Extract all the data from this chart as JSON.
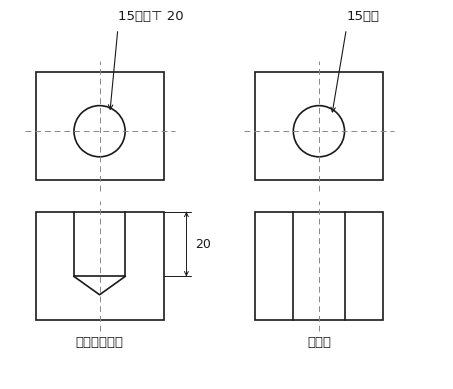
{
  "bg_color": "#ffffff",
  "line_color": "#1a1a1a",
  "dash_color": "#888888",
  "label_left": "貫通しない穴",
  "label_right": "貫通穴",
  "annot_left": "15キリ⊤ 20",
  "annot_right": "15キリ",
  "dim_label": "20",
  "font_size_label": 9.5,
  "font_size_annot": 9.5,
  "font_size_dim": 9,
  "lw_main": 1.2,
  "lw_dash": 0.7,
  "lw_dim": 0.8
}
